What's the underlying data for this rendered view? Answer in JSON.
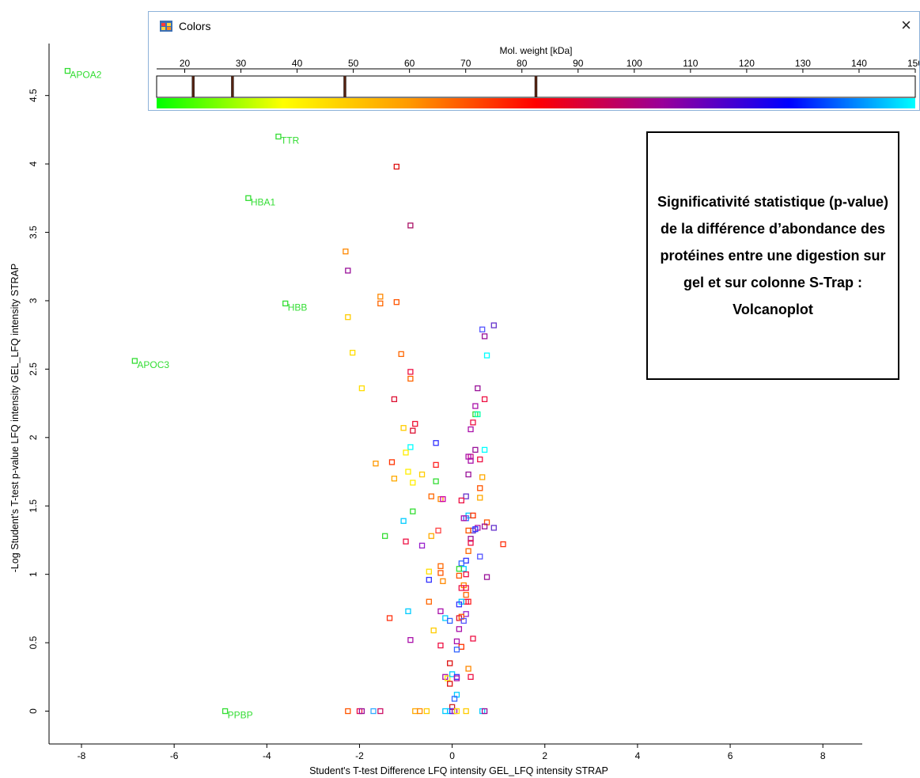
{
  "colors_window": {
    "title": "Colors",
    "close_glyph": "×",
    "icon": "palette-icon",
    "scale_label": "Mol. weight [kDa]",
    "ticks": [
      20,
      30,
      40,
      50,
      60,
      70,
      80,
      90,
      100,
      110,
      120,
      130,
      140,
      150
    ],
    "range": [
      15,
      150
    ],
    "markers": [
      21.5,
      28.5,
      48.5,
      82.5
    ],
    "gradient_colors": [
      "#00ff00",
      "#ffff00",
      "#ff9900",
      "#ff0000",
      "#990099",
      "#0000ff",
      "#00ffff"
    ]
  },
  "annotation": {
    "text": "Significativité statistique (p-value) de la différence d’abondance des protéines entre une digestion sur gel et sur colonne S-Trap : Volcanoplot"
  },
  "chart_data": {
    "type": "scatter",
    "xlabel": "Student's T-test Difference LFQ intensity GEL_LFQ intensity STRAP",
    "ylabel": "-Log Student's T-test p-value LFQ intensity GEL_LFQ intensity STRAP",
    "xlim": [
      -8.7,
      8.85
    ],
    "ylim": [
      -0.24,
      4.88
    ],
    "xticks": [
      -8,
      -6,
      -4,
      -2,
      0,
      2,
      4,
      6,
      8
    ],
    "yticks": [
      0,
      0.5,
      1,
      1.5,
      2,
      2.5,
      3,
      3.5,
      4,
      4.5
    ],
    "ytick_labels": [
      "0",
      "0.5",
      "1",
      "1.5",
      "2",
      "2.5",
      "3",
      "3.5",
      "4",
      "4.5"
    ],
    "labeled_points": [
      {
        "label": "APOA2",
        "x": -8.3,
        "y": 4.68,
        "color": "#33dd33"
      },
      {
        "label": "TTR",
        "x": -3.75,
        "y": 4.2,
        "color": "#33dd33"
      },
      {
        "label": "HBA1",
        "x": -4.4,
        "y": 3.75,
        "color": "#33dd33"
      },
      {
        "label": "HBB",
        "x": -3.6,
        "y": 2.98,
        "color": "#33dd33"
      },
      {
        "label": "APOC3",
        "x": -6.85,
        "y": 2.56,
        "color": "#33dd33"
      },
      {
        "label": "PPBP",
        "x": -4.9,
        "y": 0.0,
        "color": "#33dd33"
      }
    ],
    "points": [
      {
        "x": -1.2,
        "y": 3.98,
        "c": "#dd1111"
      },
      {
        "x": -0.9,
        "y": 3.55,
        "c": "#aa1166"
      },
      {
        "x": -2.3,
        "y": 3.36,
        "c": "#ff8800"
      },
      {
        "x": -2.25,
        "y": 3.22,
        "c": "#991199"
      },
      {
        "x": -1.55,
        "y": 3.03,
        "c": "#ff8800"
      },
      {
        "x": -1.55,
        "y": 2.98,
        "c": "#ff6600"
      },
      {
        "x": -1.2,
        "y": 2.99,
        "c": "#ff5500"
      },
      {
        "x": -2.25,
        "y": 2.88,
        "c": "#ffcc00"
      },
      {
        "x": -2.15,
        "y": 2.62,
        "c": "#ffdd00"
      },
      {
        "x": -1.1,
        "y": 2.61,
        "c": "#ff6600"
      },
      {
        "x": -0.9,
        "y": 2.48,
        "c": "#ee1144"
      },
      {
        "x": -0.9,
        "y": 2.43,
        "c": "#ff6600"
      },
      {
        "x": -1.95,
        "y": 2.36,
        "c": "#ffdd00"
      },
      {
        "x": -1.25,
        "y": 2.28,
        "c": "#dd1133"
      },
      {
        "x": -0.8,
        "y": 2.1,
        "c": "#ee1133"
      },
      {
        "x": -1.05,
        "y": 2.07,
        "c": "#ffcc00"
      },
      {
        "x": -0.85,
        "y": 2.05,
        "c": "#dd1133"
      },
      {
        "x": -0.35,
        "y": 1.96,
        "c": "#3333ff"
      },
      {
        "x": -0.9,
        "y": 1.93,
        "c": "#00ffff"
      },
      {
        "x": -1.0,
        "y": 1.89,
        "c": "#ffee00"
      },
      {
        "x": -1.65,
        "y": 1.81,
        "c": "#ff9900"
      },
      {
        "x": -1.3,
        "y": 1.82,
        "c": "#ff3300"
      },
      {
        "x": -0.35,
        "y": 1.8,
        "c": "#ff2222"
      },
      {
        "x": -0.65,
        "y": 1.73,
        "c": "#ffcc00"
      },
      {
        "x": -0.95,
        "y": 1.75,
        "c": "#ffee00"
      },
      {
        "x": -1.25,
        "y": 1.7,
        "c": "#ffaa00"
      },
      {
        "x": -0.85,
        "y": 1.67,
        "c": "#ffee00"
      },
      {
        "x": -0.35,
        "y": 1.68,
        "c": "#33dd33"
      },
      {
        "x": -0.45,
        "y": 1.57,
        "c": "#ff6600"
      },
      {
        "x": -0.25,
        "y": 1.55,
        "c": "#ff8800"
      },
      {
        "x": -0.2,
        "y": 1.55,
        "c": "#cc00aa"
      },
      {
        "x": -0.85,
        "y": 1.46,
        "c": "#33dd33"
      },
      {
        "x": -1.05,
        "y": 1.39,
        "c": "#00ccff"
      },
      {
        "x": -0.3,
        "y": 1.32,
        "c": "#ff4444"
      },
      {
        "x": -1.45,
        "y": 1.28,
        "c": "#33dd33"
      },
      {
        "x": -0.45,
        "y": 1.28,
        "c": "#ffaa00"
      },
      {
        "x": -1.0,
        "y": 1.24,
        "c": "#ee1144"
      },
      {
        "x": -0.65,
        "y": 1.21,
        "c": "#9922cc"
      },
      {
        "x": -0.25,
        "y": 1.06,
        "c": "#ff6600"
      },
      {
        "x": -0.25,
        "y": 1.01,
        "c": "#ff5500"
      },
      {
        "x": -0.5,
        "y": 1.02,
        "c": "#ffdd00"
      },
      {
        "x": -0.5,
        "y": 0.96,
        "c": "#3333ff"
      },
      {
        "x": -0.2,
        "y": 0.95,
        "c": "#ff8800"
      },
      {
        "x": -0.5,
        "y": 0.8,
        "c": "#ff6600"
      },
      {
        "x": -0.95,
        "y": 0.73,
        "c": "#00ccff"
      },
      {
        "x": -0.25,
        "y": 0.73,
        "c": "#aa11aa"
      },
      {
        "x": -1.35,
        "y": 0.68,
        "c": "#ff3311"
      },
      {
        "x": -0.15,
        "y": 0.68,
        "c": "#00ccff"
      },
      {
        "x": -0.05,
        "y": 0.66,
        "c": "#3366ff"
      },
      {
        "x": -0.4,
        "y": 0.59,
        "c": "#ffcc00"
      },
      {
        "x": -0.9,
        "y": 0.52,
        "c": "#aa11aa"
      },
      {
        "x": -0.25,
        "y": 0.48,
        "c": "#ee1144"
      },
      {
        "x": -0.05,
        "y": 0.35,
        "c": "#dd1111"
      },
      {
        "x": -0.15,
        "y": 0.25,
        "c": "#aa11aa"
      },
      {
        "x": -0.1,
        "y": 0.24,
        "c": "#ffee00"
      },
      {
        "x": -0.05,
        "y": 0.2,
        "c": "#dd1111"
      },
      {
        "x": 0.55,
        "y": 2.36,
        "c": "#991199"
      },
      {
        "x": 0.7,
        "y": 2.28,
        "c": "#ee1144"
      },
      {
        "x": 0.5,
        "y": 2.23,
        "c": "#aa11aa"
      },
      {
        "x": 0.5,
        "y": 2.17,
        "c": "#33dd33"
      },
      {
        "x": 0.55,
        "y": 2.17,
        "c": "#00ffaa"
      },
      {
        "x": 0.45,
        "y": 2.11,
        "c": "#ee1144"
      },
      {
        "x": 0.4,
        "y": 2.06,
        "c": "#aa11aa"
      },
      {
        "x": 0.65,
        "y": 2.79,
        "c": "#5555ff"
      },
      {
        "x": 0.9,
        "y": 2.82,
        "c": "#6633cc"
      },
      {
        "x": 0.7,
        "y": 2.74,
        "c": "#991199"
      },
      {
        "x": 0.75,
        "y": 2.6,
        "c": "#00ffff"
      },
      {
        "x": 0.7,
        "y": 1.91,
        "c": "#00ffff"
      },
      {
        "x": 0.5,
        "y": 1.91,
        "c": "#991199"
      },
      {
        "x": 0.4,
        "y": 1.86,
        "c": "#cc1188"
      },
      {
        "x": 0.4,
        "y": 1.83,
        "c": "#aa11aa"
      },
      {
        "x": 0.6,
        "y": 1.84,
        "c": "#ee1144"
      },
      {
        "x": 0.35,
        "y": 1.86,
        "c": "#aa11aa"
      },
      {
        "x": 0.35,
        "y": 1.73,
        "c": "#991199"
      },
      {
        "x": 0.65,
        "y": 1.71,
        "c": "#ffaa00"
      },
      {
        "x": 0.6,
        "y": 1.63,
        "c": "#ff5500"
      },
      {
        "x": 0.6,
        "y": 1.56,
        "c": "#ffaa00"
      },
      {
        "x": 0.3,
        "y": 1.57,
        "c": "#6633cc"
      },
      {
        "x": 0.2,
        "y": 1.54,
        "c": "#ee1144"
      },
      {
        "x": 0.35,
        "y": 1.43,
        "c": "#00ccff"
      },
      {
        "x": 0.45,
        "y": 1.43,
        "c": "#ff3300"
      },
      {
        "x": 0.3,
        "y": 1.41,
        "c": "#3366ff"
      },
      {
        "x": 0.25,
        "y": 1.41,
        "c": "#aa11aa"
      },
      {
        "x": 0.75,
        "y": 1.38,
        "c": "#ff5500"
      },
      {
        "x": 0.7,
        "y": 1.35,
        "c": "#991199"
      },
      {
        "x": 0.9,
        "y": 1.34,
        "c": "#6633cc"
      },
      {
        "x": 0.55,
        "y": 1.34,
        "c": "#aa11aa"
      },
      {
        "x": 0.45,
        "y": 1.32,
        "c": "#6633cc"
      },
      {
        "x": 0.5,
        "y": 1.33,
        "c": "#3333ff"
      },
      {
        "x": 0.35,
        "y": 1.32,
        "c": "#ff5500"
      },
      {
        "x": 0.4,
        "y": 1.26,
        "c": "#991199"
      },
      {
        "x": 0.4,
        "y": 1.23,
        "c": "#ee1144"
      },
      {
        "x": 1.1,
        "y": 1.22,
        "c": "#ff3311"
      },
      {
        "x": 0.35,
        "y": 1.17,
        "c": "#ff6600"
      },
      {
        "x": 0.6,
        "y": 1.13,
        "c": "#5555ff"
      },
      {
        "x": 0.3,
        "y": 1.1,
        "c": "#3333ff"
      },
      {
        "x": 0.2,
        "y": 1.08,
        "c": "#3366ff"
      },
      {
        "x": 0.25,
        "y": 1.04,
        "c": "#00ccff"
      },
      {
        "x": 0.15,
        "y": 1.04,
        "c": "#33dd33"
      },
      {
        "x": 0.3,
        "y": 1.0,
        "c": "#ee1144"
      },
      {
        "x": 0.15,
        "y": 0.99,
        "c": "#ff5500"
      },
      {
        "x": 0.75,
        "y": 0.98,
        "c": "#991199"
      },
      {
        "x": 0.25,
        "y": 0.92,
        "c": "#ff8800"
      },
      {
        "x": 0.2,
        "y": 0.9,
        "c": "#ee1144"
      },
      {
        "x": 0.3,
        "y": 0.9,
        "c": "#ee1144"
      },
      {
        "x": 0.3,
        "y": 0.85,
        "c": "#ff6600"
      },
      {
        "x": 0.35,
        "y": 0.8,
        "c": "#ff2222"
      },
      {
        "x": 0.3,
        "y": 0.8,
        "c": "#ee1144"
      },
      {
        "x": 0.2,
        "y": 0.8,
        "c": "#00ccff"
      },
      {
        "x": 0.15,
        "y": 0.78,
        "c": "#3333ff"
      },
      {
        "x": 0.3,
        "y": 0.71,
        "c": "#9922cc"
      },
      {
        "x": 0.2,
        "y": 0.69,
        "c": "#ff5500"
      },
      {
        "x": 0.15,
        "y": 0.68,
        "c": "#dd1133"
      },
      {
        "x": 0.25,
        "y": 0.66,
        "c": "#5555ff"
      },
      {
        "x": 0.45,
        "y": 0.53,
        "c": "#ee1144"
      },
      {
        "x": 0.15,
        "y": 0.6,
        "c": "#aa11aa"
      },
      {
        "x": 0.1,
        "y": 0.51,
        "c": "#aa11aa"
      },
      {
        "x": 0.2,
        "y": 0.47,
        "c": "#ff3300"
      },
      {
        "x": 0.1,
        "y": 0.45,
        "c": "#3366ff"
      },
      {
        "x": 0.35,
        "y": 0.31,
        "c": "#ff8800"
      },
      {
        "x": 0.0,
        "y": 0.27,
        "c": "#00ccff"
      },
      {
        "x": 0.1,
        "y": 0.25,
        "c": "#3333ff"
      },
      {
        "x": 0.1,
        "y": 0.24,
        "c": "#aa11aa"
      },
      {
        "x": 0.4,
        "y": 0.25,
        "c": "#ee1144"
      },
      {
        "x": 0.1,
        "y": 0.12,
        "c": "#00ccff"
      },
      {
        "x": 0.05,
        "y": 0.09,
        "c": "#3366ff"
      },
      {
        "x": 0.0,
        "y": 0.03,
        "c": "#cc2222"
      },
      {
        "x": -2.25,
        "y": 0.0,
        "c": "#ff5500"
      },
      {
        "x": -2.0,
        "y": 0.0,
        "c": "#ee1144"
      },
      {
        "x": -1.95,
        "y": 0.0,
        "c": "#991199"
      },
      {
        "x": -1.7,
        "y": 0.0,
        "c": "#33aaff"
      },
      {
        "x": -1.55,
        "y": 0.0,
        "c": "#cc1166"
      },
      {
        "x": -0.8,
        "y": 0.0,
        "c": "#ffaa00"
      },
      {
        "x": -0.7,
        "y": 0.0,
        "c": "#ff8800"
      },
      {
        "x": -0.55,
        "y": 0.0,
        "c": "#ffcc00"
      },
      {
        "x": -0.15,
        "y": 0.0,
        "c": "#00ccff"
      },
      {
        "x": -0.05,
        "y": 0.0,
        "c": "#00ccff"
      },
      {
        "x": 0.0,
        "y": 0.0,
        "c": "#3333ff"
      },
      {
        "x": 0.05,
        "y": 0.0,
        "c": "#aa11aa"
      },
      {
        "x": 0.1,
        "y": 0.0,
        "c": "#ffdd00"
      },
      {
        "x": 0.3,
        "y": 0.0,
        "c": "#ffcc00"
      },
      {
        "x": 0.65,
        "y": 0.0,
        "c": "#00ccff"
      },
      {
        "x": 0.7,
        "y": 0.0,
        "c": "#991199"
      }
    ]
  }
}
